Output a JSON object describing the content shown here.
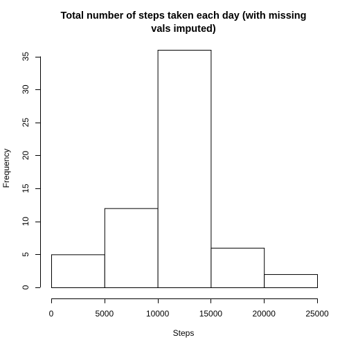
{
  "chart_data": {
    "type": "bar",
    "title_lines": [
      "Total number of steps taken each day (with missing",
      "vals imputed)"
    ],
    "xlabel": "Steps",
    "ylabel": "Frequency",
    "bins": [
      {
        "from": 0,
        "to": 5000,
        "count": 5
      },
      {
        "from": 5000,
        "to": 10000,
        "count": 12
      },
      {
        "from": 10000,
        "to": 15000,
        "count": 36
      },
      {
        "from": 15000,
        "to": 20000,
        "count": 6
      },
      {
        "from": 20000,
        "to": 25000,
        "count": 2
      }
    ],
    "xlim": [
      0,
      25000
    ],
    "ylim": [
      0,
      36
    ],
    "x_ticks": [
      0,
      5000,
      10000,
      15000,
      20000,
      25000
    ],
    "y_ticks": [
      0,
      5,
      10,
      15,
      20,
      25,
      30,
      35
    ],
    "grid": false,
    "legend": "none"
  }
}
